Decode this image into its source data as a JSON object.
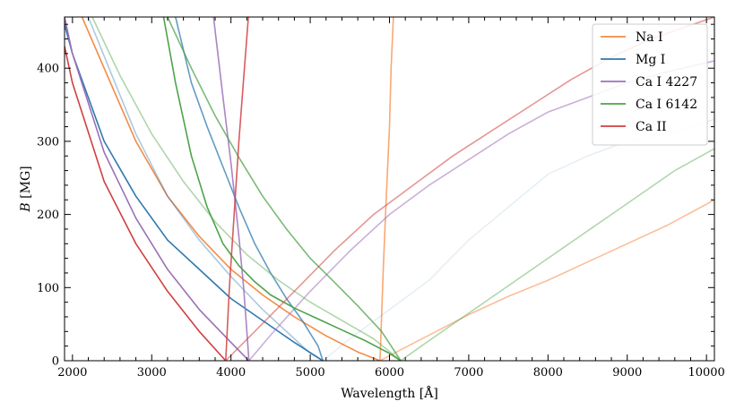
{
  "chart_data": {
    "type": "line",
    "xlabel": "Wavelength [Å]",
    "ylabel": "B [MG]",
    "xlim": [
      1900,
      10100
    ],
    "ylim": [
      0,
      470
    ],
    "xticks": [
      2000,
      3000,
      4000,
      5000,
      6000,
      7000,
      8000,
      9000,
      10000
    ],
    "yticks": [
      0,
      100,
      200,
      300,
      400
    ],
    "legend": {
      "placement": "top-right",
      "entries": [
        "Na I",
        "Mg I",
        "Ca I 4227",
        "Ca I 6142",
        "Ca II"
      ]
    },
    "series": [
      {
        "name": "Na I",
        "color": "#f58b45",
        "opacity": 1.0,
        "x": [
          2120,
          2400,
          2800,
          3200,
          3600,
          4000,
          4400,
          4800,
          5200,
          5600,
          5880
        ],
        "y": [
          470,
          400,
          300,
          225,
          170,
          125,
          90,
          60,
          34,
          12,
          0
        ]
      },
      {
        "name": "",
        "color": "#f58b45",
        "opacity": 0.75,
        "x": [
          5880,
          5900,
          5920,
          5950,
          6000,
          6020,
          6050
        ],
        "y": [
          0,
          60,
          120,
          200,
          320,
          400,
          470
        ]
      },
      {
        "name": "",
        "color": "#f58b45",
        "opacity": 0.55,
        "x": [
          5880,
          6000,
          6500,
          7000,
          7500,
          8000,
          8500,
          9000,
          9500,
          10100
        ],
        "y": [
          0,
          7,
          35,
          63,
          88,
          110,
          135,
          160,
          185,
          220
        ]
      },
      {
        "name": "Mg I",
        "color": "#2f79b0",
        "opacity": 1.0,
        "x": [
          1900,
          2000,
          2400,
          2800,
          3200,
          3600,
          4000,
          4400,
          4800,
          5160
        ],
        "y": [
          460,
          420,
          300,
          225,
          165,
          125,
          85,
          55,
          25,
          0
        ]
      },
      {
        "name": "",
        "color": "#2f79b0",
        "opacity": 0.75,
        "x": [
          3300,
          3500,
          3700,
          3900,
          4100,
          4300,
          4500,
          4700,
          4900,
          5100,
          5160
        ],
        "y": [
          470,
          380,
          320,
          265,
          210,
          160,
          120,
          85,
          55,
          20,
          0
        ]
      },
      {
        "name": "",
        "color": "#2f79b0",
        "opacity": 0.4,
        "x": [
          2200,
          2500,
          2800,
          3200,
          3600,
          4000,
          4400,
          4800,
          5000,
          5160
        ],
        "y": [
          470,
          390,
          310,
          225,
          165,
          115,
          70,
          30,
          10,
          0
        ]
      },
      {
        "name": "",
        "color": "#2f79b0",
        "opacity": 0.12,
        "x": [
          5160,
          5500,
          6000,
          6500,
          7000,
          7500,
          8000,
          8500,
          9000,
          9500,
          10100
        ],
        "y": [
          0,
          30,
          70,
          110,
          165,
          210,
          255,
          280,
          300,
          310,
          330
        ]
      },
      {
        "name": "Ca I 4227",
        "color": "#9c70b8",
        "opacity": 1.0,
        "x": [
          1900,
          2000,
          2400,
          2800,
          3200,
          3600,
          4000,
          4227
        ],
        "y": [
          470,
          420,
          285,
          195,
          125,
          70,
          25,
          0
        ]
      },
      {
        "name": "",
        "color": "#9c70b8",
        "opacity": 0.85,
        "x": [
          3780,
          3900,
          4000,
          4100,
          4160,
          4200,
          4227
        ],
        "y": [
          470,
          360,
          270,
          170,
          100,
          40,
          0
        ]
      },
      {
        "name": "",
        "color": "#9c70b8",
        "opacity": 0.55,
        "x": [
          4227,
          4500,
          5000,
          5500,
          6000,
          6500,
          7000,
          7500,
          8000,
          8500,
          9000,
          9500,
          10100
        ],
        "y": [
          0,
          35,
          95,
          150,
          200,
          240,
          275,
          310,
          340,
          360,
          380,
          395,
          410
        ]
      },
      {
        "name": "Ca I 6142",
        "color": "#4ea34a",
        "opacity": 1.0,
        "x": [
          3150,
          3300,
          3500,
          3700,
          3900,
          4100,
          4300,
          4500,
          4800,
          5100,
          5400,
          5700,
          6000,
          6142
        ],
        "y": [
          470,
          380,
          280,
          210,
          160,
          130,
          108,
          90,
          72,
          57,
          42,
          27,
          10,
          0
        ]
      },
      {
        "name": "",
        "color": "#4ea34a",
        "opacity": 0.75,
        "x": [
          3200,
          3500,
          3800,
          4100,
          4400,
          4700,
          5000,
          5300,
          5600,
          5900,
          6142
        ],
        "y": [
          470,
          400,
          335,
          278,
          225,
          180,
          140,
          108,
          75,
          40,
          0
        ]
      },
      {
        "name": "",
        "color": "#4ea34a",
        "opacity": 0.45,
        "x": [
          2250,
          2600,
          3000,
          3400,
          3800,
          4200,
          4600,
          5000,
          5400,
          5800,
          6142
        ],
        "y": [
          470,
          390,
          310,
          245,
          190,
          145,
          110,
          80,
          55,
          30,
          0
        ]
      },
      {
        "name": "",
        "color": "#4ea34a",
        "opacity": 0.45,
        "x": [
          6142,
          6400,
          6800,
          7200,
          7600,
          8000,
          8400,
          8800,
          9200,
          9600,
          10100
        ],
        "y": [
          0,
          20,
          50,
          80,
          110,
          140,
          170,
          200,
          230,
          260,
          290
        ]
      },
      {
        "name": "Ca II",
        "color": "#d13f3f",
        "opacity": 1.0,
        "x": [
          1900,
          2000,
          2400,
          2800,
          3200,
          3600,
          3934
        ],
        "y": [
          430,
          380,
          245,
          160,
          95,
          40,
          0
        ]
      },
      {
        "name": "",
        "color": "#d13f3f",
        "opacity": 0.85,
        "x": [
          3934,
          3980,
          4040,
          4100,
          4170,
          4220
        ],
        "y": [
          0,
          100,
          200,
          300,
          400,
          470
        ]
      },
      {
        "name": "",
        "color": "#d13f3f",
        "opacity": 0.55,
        "x": [
          3934,
          4300,
          4800,
          5300,
          5800,
          6300,
          6800,
          7300,
          7800,
          8300,
          8800,
          9300,
          10100
        ],
        "y": [
          0,
          40,
          95,
          150,
          200,
          240,
          280,
          315,
          350,
          385,
          415,
          440,
          470
        ]
      }
    ]
  }
}
